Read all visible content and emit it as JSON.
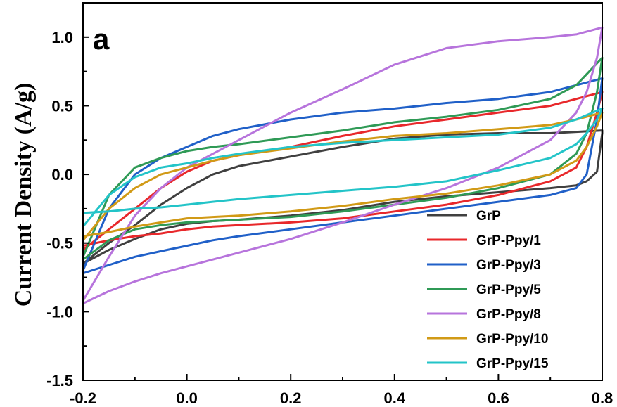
{
  "chart_data": {
    "type": "line",
    "panel_label": "a",
    "title": "",
    "xlabel": "",
    "ylabel": "Current Density (A/g)",
    "xlim": [
      -0.2,
      0.8
    ],
    "ylim": [
      -1.5,
      1.25
    ],
    "xticks": [
      -0.2,
      0.0,
      0.2,
      0.4,
      0.6,
      0.8
    ],
    "xtick_labels": [
      "-0.2",
      "0.0",
      "0.2",
      "0.4",
      "0.6",
      "0.8"
    ],
    "yticks": [
      -1.5,
      -1.0,
      -0.5,
      0.0,
      0.5,
      1.0
    ],
    "ytick_labels": [
      "-1.5",
      "-1.0",
      "-0.5",
      "0.0",
      "0.5",
      "1.0"
    ],
    "grid": false,
    "legend_position": "bottom-right",
    "series": [
      {
        "name": "GrP",
        "color": "#404040",
        "x": [
          -0.2,
          -0.15,
          -0.1,
          -0.05,
          0.0,
          0.05,
          0.1,
          0.2,
          0.3,
          0.4,
          0.5,
          0.6,
          0.7,
          0.75,
          0.8,
          0.8,
          0.79,
          0.77,
          0.75,
          0.7,
          0.6,
          0.5,
          0.4,
          0.3,
          0.2,
          0.1,
          0.05,
          0.0,
          -0.05,
          -0.1,
          -0.15,
          -0.2
        ],
        "y": [
          -0.65,
          -0.5,
          -0.37,
          -0.22,
          -0.1,
          0.0,
          0.06,
          0.13,
          0.2,
          0.26,
          0.29,
          0.3,
          0.3,
          0.31,
          0.32,
          0.3,
          0.02,
          -0.05,
          -0.08,
          -0.1,
          -0.13,
          -0.16,
          -0.2,
          -0.26,
          -0.3,
          -0.33,
          -0.34,
          -0.36,
          -0.4,
          -0.47,
          -0.55,
          -0.65
        ]
      },
      {
        "name": "GrP-Ppy/1",
        "color": "#e8282b",
        "x": [
          -0.2,
          -0.15,
          -0.1,
          -0.05,
          0.0,
          0.05,
          0.1,
          0.2,
          0.3,
          0.4,
          0.5,
          0.6,
          0.7,
          0.75,
          0.8,
          0.8,
          0.79,
          0.77,
          0.75,
          0.7,
          0.6,
          0.5,
          0.4,
          0.3,
          0.2,
          0.1,
          0.05,
          0.0,
          -0.05,
          -0.1,
          -0.15,
          -0.2
        ],
        "y": [
          -0.55,
          -0.4,
          -0.25,
          -0.1,
          0.02,
          0.1,
          0.14,
          0.2,
          0.28,
          0.35,
          0.4,
          0.45,
          0.5,
          0.55,
          0.6,
          0.6,
          0.45,
          0.2,
          0.05,
          -0.05,
          -0.15,
          -0.22,
          -0.27,
          -0.32,
          -0.35,
          -0.37,
          -0.38,
          -0.4,
          -0.43,
          -0.45,
          -0.48,
          -0.52
        ]
      },
      {
        "name": "GrP-Ppy/3",
        "color": "#2060c8",
        "x": [
          -0.2,
          -0.15,
          -0.1,
          -0.05,
          0.0,
          0.05,
          0.1,
          0.2,
          0.3,
          0.4,
          0.5,
          0.6,
          0.7,
          0.75,
          0.8,
          0.8,
          0.79,
          0.77,
          0.75,
          0.7,
          0.6,
          0.5,
          0.4,
          0.3,
          0.2,
          0.1,
          0.05,
          0.0,
          -0.05,
          -0.1,
          -0.15,
          -0.2
        ],
        "y": [
          -0.7,
          -0.25,
          0.0,
          0.12,
          0.2,
          0.28,
          0.33,
          0.4,
          0.45,
          0.48,
          0.52,
          0.55,
          0.6,
          0.65,
          0.7,
          0.7,
          0.4,
          0.0,
          -0.1,
          -0.15,
          -0.2,
          -0.25,
          -0.3,
          -0.35,
          -0.4,
          -0.45,
          -0.48,
          -0.52,
          -0.56,
          -0.6,
          -0.66,
          -0.72
        ]
      },
      {
        "name": "GrP-Ppy/5",
        "color": "#2f9a56",
        "x": [
          -0.2,
          -0.15,
          -0.1,
          -0.05,
          0.0,
          0.05,
          0.1,
          0.2,
          0.3,
          0.4,
          0.5,
          0.6,
          0.7,
          0.75,
          0.8,
          0.8,
          0.79,
          0.77,
          0.75,
          0.7,
          0.6,
          0.5,
          0.4,
          0.3,
          0.2,
          0.1,
          0.05,
          0.0,
          -0.05,
          -0.1,
          -0.15,
          -0.2
        ],
        "y": [
          -0.6,
          -0.15,
          0.05,
          0.12,
          0.17,
          0.2,
          0.22,
          0.27,
          0.32,
          0.38,
          0.42,
          0.47,
          0.55,
          0.65,
          0.85,
          0.85,
          0.6,
          0.3,
          0.15,
          0.0,
          -0.1,
          -0.17,
          -0.22,
          -0.27,
          -0.31,
          -0.33,
          -0.34,
          -0.35,
          -0.37,
          -0.4,
          -0.48,
          -0.62
        ]
      },
      {
        "name": "GrP-Ppy/8",
        "color": "#b774dc",
        "x": [
          -0.2,
          -0.15,
          -0.1,
          -0.05,
          0.0,
          0.05,
          0.1,
          0.2,
          0.3,
          0.4,
          0.5,
          0.6,
          0.7,
          0.75,
          0.8,
          0.8,
          0.79,
          0.77,
          0.75,
          0.7,
          0.6,
          0.5,
          0.4,
          0.3,
          0.2,
          0.1,
          0.05,
          0.0,
          -0.05,
          -0.1,
          -0.15,
          -0.2
        ],
        "y": [
          -0.92,
          -0.6,
          -0.3,
          -0.1,
          0.05,
          0.15,
          0.25,
          0.45,
          0.62,
          0.8,
          0.92,
          0.97,
          1.0,
          1.02,
          1.07,
          1.07,
          0.85,
          0.6,
          0.45,
          0.25,
          0.05,
          -0.1,
          -0.22,
          -0.35,
          -0.47,
          -0.57,
          -0.62,
          -0.67,
          -0.72,
          -0.78,
          -0.85,
          -0.94
        ]
      },
      {
        "name": "GrP-Ppy/10",
        "color": "#d19a16",
        "x": [
          -0.2,
          -0.15,
          -0.1,
          -0.05,
          0.0,
          0.05,
          0.1,
          0.2,
          0.3,
          0.4,
          0.5,
          0.6,
          0.7,
          0.75,
          0.8,
          0.8,
          0.79,
          0.77,
          0.75,
          0.7,
          0.6,
          0.5,
          0.4,
          0.3,
          0.2,
          0.1,
          0.05,
          0.0,
          -0.05,
          -0.1,
          -0.15,
          -0.2
        ],
        "y": [
          -0.48,
          -0.25,
          -0.1,
          0.0,
          0.05,
          0.1,
          0.14,
          0.19,
          0.24,
          0.28,
          0.3,
          0.33,
          0.36,
          0.4,
          0.45,
          0.45,
          0.35,
          0.2,
          0.1,
          0.0,
          -0.08,
          -0.14,
          -0.18,
          -0.23,
          -0.27,
          -0.3,
          -0.31,
          -0.32,
          -0.35,
          -0.38,
          -0.42,
          -0.45
        ]
      },
      {
        "name": "GrP-Ppy/15",
        "color": "#23c4c8",
        "x": [
          -0.2,
          -0.15,
          -0.1,
          -0.05,
          0.0,
          0.05,
          0.1,
          0.2,
          0.3,
          0.4,
          0.5,
          0.6,
          0.7,
          0.75,
          0.8,
          0.8,
          0.79,
          0.77,
          0.75,
          0.7,
          0.6,
          0.5,
          0.4,
          0.3,
          0.2,
          0.1,
          0.05,
          0.0,
          -0.05,
          -0.1,
          -0.15,
          -0.2
        ],
        "y": [
          -0.38,
          -0.15,
          -0.02,
          0.05,
          0.08,
          0.12,
          0.15,
          0.2,
          0.23,
          0.25,
          0.27,
          0.29,
          0.34,
          0.4,
          0.48,
          0.48,
          0.4,
          0.3,
          0.22,
          0.12,
          0.03,
          -0.05,
          -0.09,
          -0.12,
          -0.15,
          -0.18,
          -0.2,
          -0.22,
          -0.24,
          -0.25,
          -0.27,
          -0.28
        ]
      }
    ]
  }
}
